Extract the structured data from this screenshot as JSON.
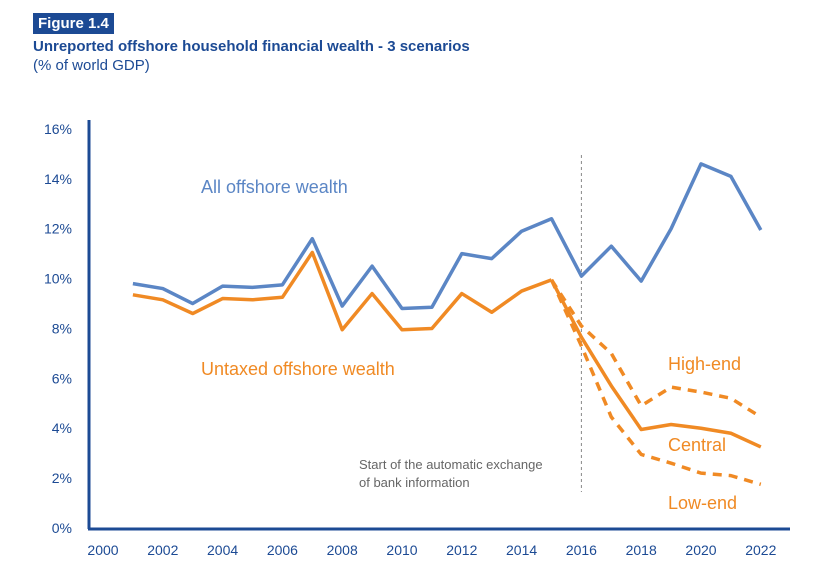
{
  "header": {
    "figure_label": "Figure 1.4",
    "title": "Unreported offshore household financial wealth - 3 scenarios",
    "subtitle": "(% of world GDP)"
  },
  "chart_data": {
    "type": "line",
    "title": "Unreported offshore household financial wealth - 3 scenarios",
    "ylabel": "% of world GDP",
    "xlim": [
      2000,
      2023
    ],
    "ylim": [
      0,
      16
    ],
    "x_ticks": [
      "2000",
      "2002",
      "2004",
      "2006",
      "2008",
      "2010",
      "2012",
      "2014",
      "2016",
      "2018",
      "2020",
      "2022"
    ],
    "y_ticks": [
      "0%",
      "2%",
      "4%",
      "6%",
      "8%",
      "10%",
      "12%",
      "14%",
      "16%"
    ],
    "grid": false,
    "colors": {
      "all": "#5b86c5",
      "untaxed": "#f08a24",
      "axis": "#1c4a94",
      "annotation": "#666666"
    },
    "series": [
      {
        "name": "All offshore wealth",
        "style": "solid",
        "color": "#5b86c5",
        "x": [
          2001,
          2002,
          2003,
          2004,
          2005,
          2006,
          2007,
          2008,
          2009,
          2010,
          2011,
          2012,
          2013,
          2014,
          2015,
          2016,
          2017,
          2018,
          2019,
          2020,
          2021,
          2022
        ],
        "values": [
          9.8,
          9.6,
          9.0,
          9.7,
          9.65,
          9.75,
          11.6,
          8.9,
          10.5,
          8.8,
          8.85,
          11.0,
          10.8,
          11.9,
          12.4,
          10.1,
          11.3,
          9.9,
          12.0,
          14.6,
          14.1,
          11.95
        ]
      },
      {
        "name": "Untaxed offshore wealth",
        "style": "solid",
        "color": "#f08a24",
        "x": [
          2001,
          2002,
          2003,
          2004,
          2005,
          2006,
          2007,
          2008,
          2009,
          2010,
          2011,
          2012,
          2013,
          2014,
          2015
        ],
        "values": [
          9.35,
          9.15,
          8.6,
          9.2,
          9.15,
          9.25,
          11.05,
          7.95,
          9.4,
          7.95,
          8.0,
          9.4,
          8.65,
          9.5,
          9.95
        ]
      },
      {
        "name": "Central",
        "style": "solid",
        "color": "#f08a24",
        "x": [
          2015,
          2016,
          2017,
          2018,
          2019,
          2020,
          2021,
          2022
        ],
        "values": [
          9.95,
          7.65,
          5.7,
          3.95,
          4.15,
          4.0,
          3.8,
          3.25
        ]
      },
      {
        "name": "High-end",
        "style": "dashed",
        "color": "#f08a24",
        "x": [
          2015,
          2016,
          2017,
          2018,
          2019,
          2020,
          2021,
          2022
        ],
        "values": [
          9.95,
          8.1,
          7.0,
          4.9,
          5.65,
          5.45,
          5.2,
          4.45
        ]
      },
      {
        "name": "Low-end",
        "style": "dashed",
        "color": "#f08a24",
        "x": [
          2015,
          2016,
          2017,
          2018,
          2019,
          2020,
          2021,
          2022
        ],
        "values": [
          9.95,
          7.3,
          4.45,
          2.95,
          2.6,
          2.2,
          2.1,
          1.75
        ]
      }
    ],
    "annotations": {
      "all_label": "All offshore wealth",
      "untaxed_label": "Untaxed offshore wealth",
      "high_label": "High-end",
      "central_label": "Central",
      "low_label": "Low-end",
      "vline_year": 2016,
      "vline_text_1": "Start of the automatic exchange",
      "vline_text_2": "of bank information"
    }
  }
}
